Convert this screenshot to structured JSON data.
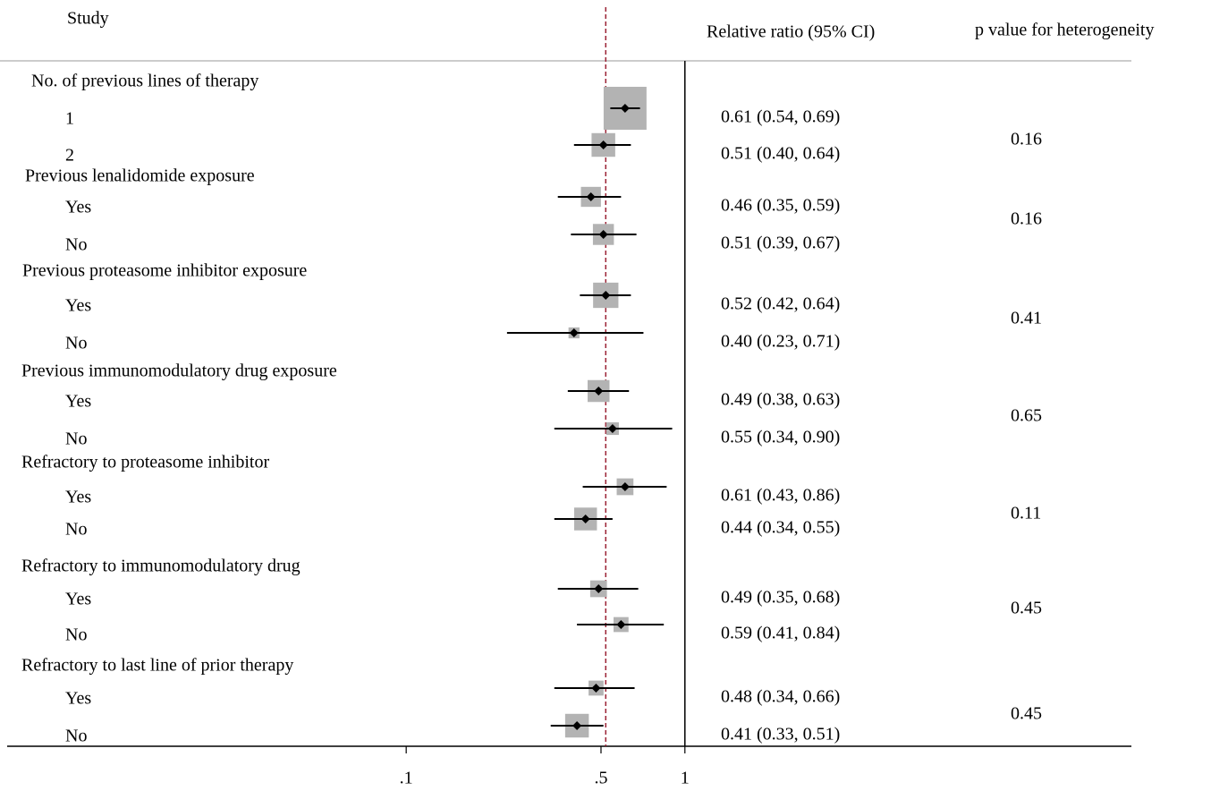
{
  "chart_data": {
    "type": "forest",
    "headers": {
      "study": "Study",
      "estimate": "Relative ratio (95% CI)",
      "p": "p value for heterogeneity"
    },
    "xscale": "log",
    "xlim": [
      0.0037,
      40
    ],
    "xticks": [
      {
        "value": 0.1,
        "label": ".1"
      },
      {
        "value": 0.5,
        "label": ".5"
      },
      1
    ],
    "null_line": 1,
    "overall_line": 0.52,
    "overall_color": "#9b2335",
    "box_color": "#b3b3b3",
    "groups": [
      {
        "name": "No. of previous lines of therapy",
        "p_value": 0.16,
        "rows": [
          {
            "label": "1",
            "estimate": 0.61,
            "lower": 0.54,
            "upper": 0.69,
            "weight": 23,
            "text": "0.61 (0.54, 0.69)"
          },
          {
            "label": "2",
            "estimate": 0.51,
            "lower": 0.4,
            "upper": 0.64,
            "weight": 7,
            "text": "0.51 (0.40, 0.64)"
          }
        ]
      },
      {
        "name": "Previous lenalidomide exposure",
        "p_value": 0.16,
        "rows": [
          {
            "label": "Yes",
            "estimate": 0.46,
            "lower": 0.35,
            "upper": 0.59,
            "weight": 5,
            "text": "0.46 (0.35, 0.59)"
          },
          {
            "label": "No",
            "estimate": 0.51,
            "lower": 0.39,
            "upper": 0.67,
            "weight": 5.5,
            "text": "0.51 (0.39, 0.67)"
          }
        ]
      },
      {
        "name": "Previous proteasome inhibitor exposure",
        "p_value": 0.41,
        "rows": [
          {
            "label": "Yes",
            "estimate": 0.52,
            "lower": 0.42,
            "upper": 0.64,
            "weight": 8,
            "text": "0.52 (0.42, 0.64)"
          },
          {
            "label": "No",
            "estimate": 0.4,
            "lower": 0.23,
            "upper": 0.71,
            "weight": 1.5,
            "text": "0.40 (0.23, 0.71)"
          }
        ]
      },
      {
        "name": "Previous immunomodulatory drug exposure",
        "p_value": 0.65,
        "rows": [
          {
            "label": "Yes",
            "estimate": 0.49,
            "lower": 0.38,
            "upper": 0.63,
            "weight": 6,
            "text": "0.49 (0.38, 0.63)"
          },
          {
            "label": "No",
            "estimate": 0.55,
            "lower": 0.34,
            "upper": 0.9,
            "weight": 2,
            "text": "0.55 (0.34, 0.90)"
          }
        ]
      },
      {
        "name": "Refractory to proteasome inhibitor",
        "p_value": 0.11,
        "rows": [
          {
            "label": "Yes",
            "estimate": 0.61,
            "lower": 0.43,
            "upper": 0.86,
            "weight": 3.5,
            "text": "0.61 (0.43, 0.86)"
          },
          {
            "label": "No",
            "estimate": 0.44,
            "lower": 0.34,
            "upper": 0.55,
            "weight": 6.5,
            "text": "0.44 (0.34, 0.55)"
          }
        ]
      },
      {
        "name": "Refractory to immunomodulatory drug",
        "p_value": 0.45,
        "rows": [
          {
            "label": "Yes",
            "estimate": 0.49,
            "lower": 0.35,
            "upper": 0.68,
            "weight": 3.5,
            "text": "0.49 (0.35, 0.68)"
          },
          {
            "label": "No",
            "estimate": 0.59,
            "lower": 0.41,
            "upper": 0.84,
            "weight": 2.8,
            "text": "0.59 (0.41, 0.84)"
          }
        ]
      },
      {
        "name": "Refractory to last line of prior therapy",
        "p_value": 0.45,
        "rows": [
          {
            "label": "Yes",
            "estimate": 0.48,
            "lower": 0.34,
            "upper": 0.66,
            "weight": 2.8,
            "text": "0.48 (0.34, 0.66)"
          },
          {
            "label": "No",
            "estimate": 0.41,
            "lower": 0.33,
            "upper": 0.51,
            "weight": 7,
            "text": "0.41 (0.33, 0.51)"
          }
        ]
      }
    ]
  }
}
